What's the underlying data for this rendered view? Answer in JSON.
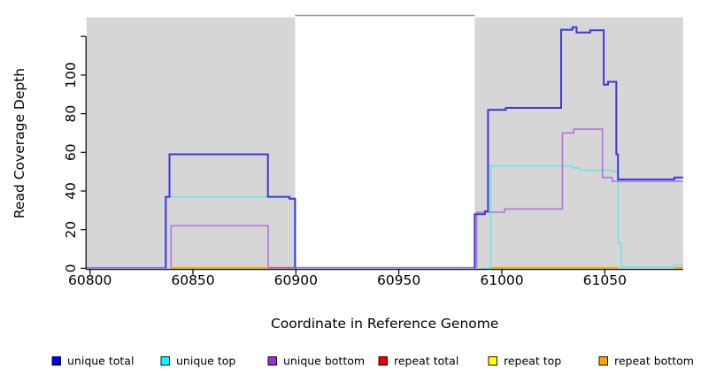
{
  "chart_data": {
    "type": "line",
    "subtype": "step-coverage",
    "title": "",
    "xlabel": "Coordinate in Reference Genome",
    "ylabel": "Read Coverage Depth",
    "xlim": [
      60798.3,
      61088
    ],
    "ylim": [
      0,
      130
    ],
    "xticks": [
      60800,
      60850,
      60900,
      60950,
      61000,
      61050
    ],
    "yticks": [
      {
        "v": 0,
        "label": "0"
      },
      {
        "v": 20,
        "label": "20"
      },
      {
        "v": 40,
        "label": "40"
      },
      {
        "v": 60,
        "label": "60"
      },
      {
        "v": 80,
        "label": "80"
      },
      {
        "v": 100,
        "label": "100"
      },
      {
        "v": 120,
        "label": ""
      }
    ],
    "colors": {
      "shaded_region": "#d6d6d6",
      "gap_top_line": "#979797",
      "axis": "#000000",
      "unique_total_line": "#3a36e3",
      "unique_top_line": "#6fe3e0",
      "unique_bottom_line": "#b274dc",
      "baseline_violet": "#8873ee",
      "baseline_rose": "#c05a82",
      "baseline_orange": "#ffa500"
    },
    "shaded_regions": [
      {
        "x0": 60798.3,
        "x1": 60899.6
      },
      {
        "x0": 60986.8,
        "x1": 61088
      }
    ],
    "gap_top_line": {
      "x0": 60899.6,
      "x1": 60986.8
    },
    "baseline_segments": [
      {
        "x0": 60798.3,
        "x1": 60836.8,
        "color": "#8873ee"
      },
      {
        "x0": 60839.4,
        "x1": 60886.4,
        "color": "#ffa500"
      },
      {
        "x0": 60886.6,
        "x1": 60899.6,
        "color": "#c05a82"
      },
      {
        "x0": 60899.6,
        "x1": 60986.8,
        "color": "#8873ee"
      },
      {
        "x0": 60994.6,
        "x1": 61056.5,
        "color": "#ffa500"
      },
      {
        "x0": 61083.8,
        "x1": 61088,
        "color": "#ffa500"
      }
    ],
    "series": [
      {
        "name": "unique top",
        "color": "#6fe3e0",
        "width": 1.6,
        "paths": [
          [
            [
              60836.8,
              0
            ],
            [
              60836.8,
              37
            ],
            [
              60896.9,
              37
            ],
            [
              60896.9,
              36
            ],
            [
              60899.3,
              36
            ],
            [
              60899.3,
              0
            ]
          ],
          [
            [
              60989.5,
              0
            ],
            [
              60994.6,
              0
            ],
            [
              60994.6,
              53
            ],
            [
              61033.9,
              53
            ],
            [
              61033.9,
              52
            ],
            [
              61037.6,
              52
            ],
            [
              61037.6,
              51
            ],
            [
              61040.3,
              51
            ],
            [
              61040.3,
              50.7
            ],
            [
              61054.2,
              50.7
            ],
            [
              61054.2,
              50
            ],
            [
              61056.5,
              50
            ],
            [
              61056.5,
              13
            ],
            [
              61057.9,
              13
            ],
            [
              61057.9,
              0.7
            ],
            [
              61083.8,
              0.7
            ],
            [
              61083.8,
              1.8
            ],
            [
              61088,
              1.8
            ]
          ]
        ]
      },
      {
        "name": "unique bottom",
        "color": "#b274dc",
        "width": 1.6,
        "paths": [
          [
            [
              60839.4,
              0
            ],
            [
              60839.4,
              22
            ],
            [
              60886.6,
              22
            ],
            [
              60886.6,
              0
            ]
          ],
          [
            [
              60987.8,
              0
            ],
            [
              60987.8,
              29
            ],
            [
              61001.3,
              29
            ],
            [
              61001.3,
              30.7
            ],
            [
              61029.4,
              30.7
            ],
            [
              61029.4,
              70
            ],
            [
              61034.9,
              70
            ],
            [
              61034.9,
              72
            ],
            [
              61048.9,
              72
            ],
            [
              61048.9,
              47
            ],
            [
              61053.6,
              47
            ],
            [
              61053.6,
              45
            ],
            [
              61088,
              45
            ]
          ]
        ]
      },
      {
        "name": "unique total",
        "color": "#3a36e3",
        "width": 2,
        "paths": [
          [
            [
              60836.8,
              0
            ],
            [
              60836.8,
              37
            ],
            [
              60838.6,
              37
            ],
            [
              60838.6,
              59
            ],
            [
              60886.4,
              59
            ],
            [
              60886.4,
              37
            ],
            [
              60896.9,
              37
            ],
            [
              60896.9,
              36
            ],
            [
              60899.6,
              36
            ],
            [
              60899.6,
              0
            ]
          ],
          [
            [
              60986.8,
              0
            ],
            [
              60986.8,
              28
            ],
            [
              60991.8,
              28
            ],
            [
              60991.8,
              29.5
            ],
            [
              60993.3,
              29.5
            ],
            [
              60993.3,
              82
            ],
            [
              61001.9,
              82
            ],
            [
              61001.9,
              83
            ],
            [
              61028.8,
              83
            ],
            [
              61028.8,
              123.5
            ],
            [
              61034.3,
              123.5
            ],
            [
              61034.3,
              124.8
            ],
            [
              61036.3,
              124.8
            ],
            [
              61036.3,
              122
            ],
            [
              61042.9,
              122
            ],
            [
              61042.9,
              123.2
            ],
            [
              61049.5,
              123.2
            ],
            [
              61049.5,
              95
            ],
            [
              61051.6,
              95
            ],
            [
              61051.6,
              96.5
            ],
            [
              61055.6,
              96.5
            ],
            [
              61055.6,
              59
            ],
            [
              61056.4,
              59
            ],
            [
              61056.4,
              46
            ],
            [
              61083.8,
              46
            ],
            [
              61083.8,
              47
            ],
            [
              61088,
              47
            ]
          ]
        ]
      }
    ],
    "legend": [
      {
        "label": "unique total",
        "color": "#0000f0"
      },
      {
        "label": "unique top",
        "color": "#00ffff"
      },
      {
        "label": "unique bottom",
        "color": "#9932cc"
      },
      {
        "label": "repeat total",
        "color": "#ee0000"
      },
      {
        "label": "repeat top",
        "color": "#ffff00"
      },
      {
        "label": "repeat bottom",
        "color": "#ffa500"
      }
    ]
  }
}
